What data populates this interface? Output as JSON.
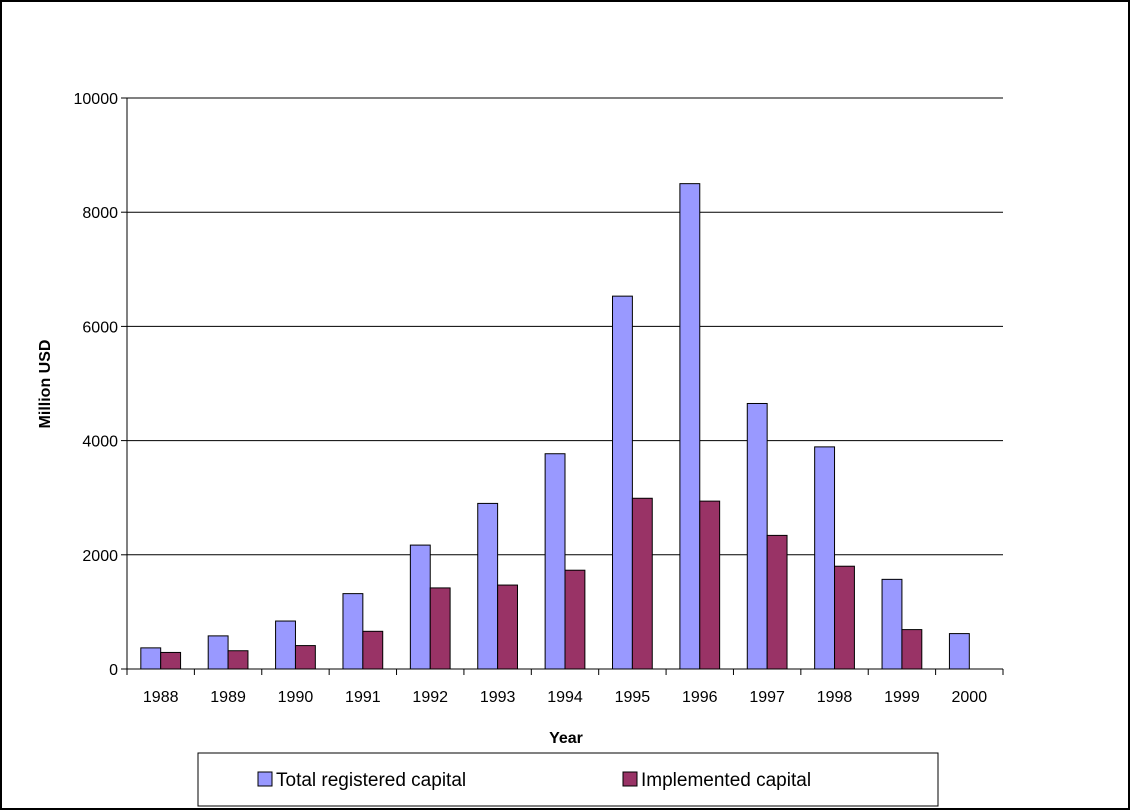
{
  "chart_data": {
    "type": "bar",
    "categories": [
      "1988",
      "1989",
      "1990",
      "1991",
      "1992",
      "1993",
      "1994",
      "1995",
      "1996",
      "1997",
      "1998",
      "1999",
      "2000"
    ],
    "series": [
      {
        "name": "Total registered capital",
        "color": "#9999ff",
        "values": [
          370,
          580,
          840,
          1320,
          2170,
          2900,
          3770,
          6530,
          8500,
          4650,
          3890,
          1570,
          620
        ]
      },
      {
        "name": "Implemented capital",
        "color": "#993366",
        "values": [
          290,
          320,
          410,
          660,
          1420,
          1470,
          1730,
          2990,
          2940,
          2340,
          1800,
          690,
          null
        ]
      }
    ],
    "xlabel": "Year",
    "ylabel": "Million USD",
    "ylim": [
      0,
      10000
    ],
    "yticks": [
      "0",
      "2000",
      "4000",
      "6000",
      "8000",
      "10000"
    ],
    "grid": true,
    "legend_position": "bottom"
  }
}
